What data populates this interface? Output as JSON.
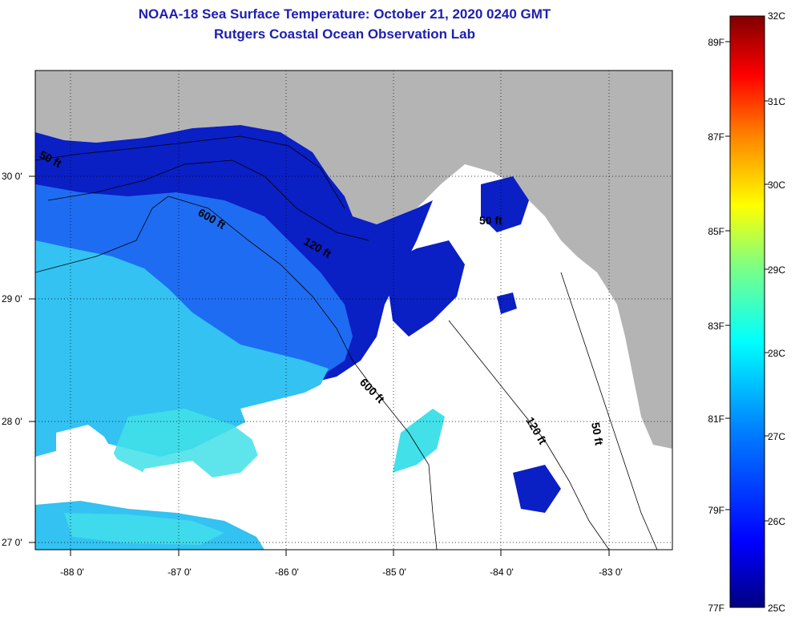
{
  "title": {
    "line1": "NOAA-18 Sea Surface Temperature:  October 21, 2020 0240 GMT",
    "line2": "Rutgers Coastal Ocean Observation Lab"
  },
  "map": {
    "lon_labels": [
      "-88 0'",
      "-87 0'",
      "-86 0'",
      "-85 0'",
      "-84 0'",
      "-83 0'"
    ],
    "lat_labels": [
      "27 0'",
      "28 0'",
      "29 0'",
      "30 0'"
    ],
    "contours": {
      "c50_west": "50 ft",
      "c600_west": "600 ft",
      "c120_west": "120 ft",
      "c600_south": "600 ft",
      "c120_east": "120 ft",
      "c50_east": "50 ft",
      "c50_ne": "50 ft"
    },
    "colors": {
      "land": "#b4b4b4",
      "cloud": "#ffffff",
      "deep_blue": "#0a1fc4",
      "mid_blue": "#1e6cf2",
      "light_blue": "#33c2f2",
      "cyan": "#42e0e8"
    }
  },
  "colorbar": {
    "celsius_labels": [
      "32C",
      "31C",
      "30C",
      "29C",
      "28C",
      "27C",
      "26C",
      "25C"
    ],
    "fahrenheit_labels": [
      "89F",
      "87F",
      "85F",
      "83F",
      "81F",
      "79F",
      "77F"
    ],
    "stops": [
      "#000080",
      "#0000ff",
      "#0080ff",
      "#00ffff",
      "#80ff80",
      "#ffff00",
      "#ff8000",
      "#ff0000",
      "#800000"
    ]
  }
}
